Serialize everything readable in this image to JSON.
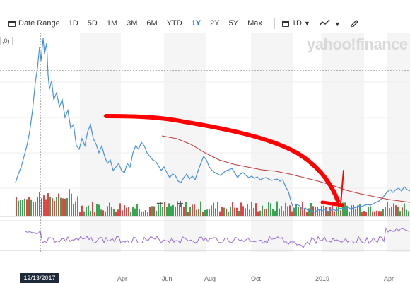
{
  "toolbar": {
    "date_range_label": "Date Range",
    "ranges": [
      "1D",
      "5D",
      "1M",
      "3M",
      "6M",
      "YTD",
      "1Y",
      "2Y",
      "5Y",
      "Max"
    ],
    "active_range": "1Y",
    "interval_label": "1D",
    "chart_type_icon": "line-chart-icon",
    "draw_icon": "pencil-icon"
  },
  "watermark": "yahoo!finance",
  "value_label": ",0)",
  "crosshair_date": "12/13/2017",
  "x_axis_labels": [
    "Apr",
    "Jun",
    "Aug",
    "Oct",
    "2019",
    "Apr"
  ],
  "zoom": {
    "minus": "−",
    "plus": "+"
  },
  "colors": {
    "price_line": "#4a90e2",
    "moving_average": "#c0393b",
    "annotation_arrow": "#ff0000",
    "volume_up": "#3aa655",
    "volume_down": "#e04646",
    "indicator_line": "#9b6bdc",
    "active_tab": "#0f69ff"
  }
}
